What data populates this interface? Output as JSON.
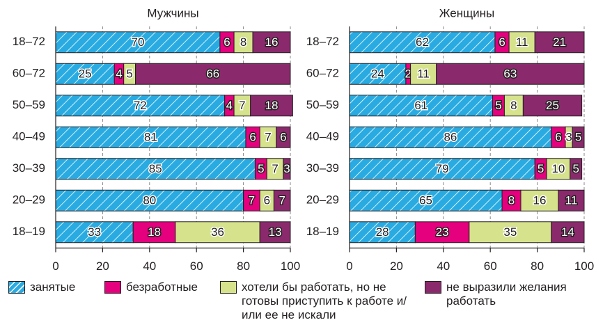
{
  "chart_data": [
    {
      "type": "stacked-bar",
      "title": "Мужчины",
      "categories": [
        "18–72",
        "60–72",
        "50–59",
        "40–49",
        "30–39",
        "20–29",
        "18–19"
      ],
      "series": [
        {
          "values": [
            70,
            25,
            72,
            81,
            85,
            80,
            33
          ]
        },
        {
          "values": [
            6,
            4,
            4,
            6,
            5,
            7,
            18
          ]
        },
        {
          "values": [
            8,
            5,
            7,
            7,
            7,
            6,
            36
          ]
        },
        {
          "values": [
            16,
            66,
            18,
            6,
            3,
            7,
            13
          ]
        }
      ],
      "xlim": [
        0,
        100
      ],
      "xticks": [
        0,
        20,
        40,
        60,
        80,
        100
      ],
      "grid": true
    },
    {
      "type": "stacked-bar",
      "title": "Женщины",
      "categories": [
        "18–72",
        "60–72",
        "50–59",
        "40–49",
        "30–39",
        "20–29",
        "18–19"
      ],
      "series": [
        {
          "values": [
            62,
            24,
            61,
            86,
            79,
            65,
            28
          ]
        },
        {
          "values": [
            6,
            2,
            5,
            6,
            5,
            8,
            23
          ]
        },
        {
          "values": [
            11,
            11,
            8,
            3,
            10,
            16,
            35
          ]
        },
        {
          "values": [
            21,
            63,
            25,
            5,
            5,
            11,
            14
          ]
        }
      ],
      "xlim": [
        0,
        100
      ],
      "xticks": [
        0,
        20,
        40,
        60,
        80,
        100
      ],
      "grid": true
    }
  ],
  "legend": [
    {
      "name": "занятые",
      "color": "#29abe2",
      "hatch": true
    },
    {
      "name": "безработные",
      "color": "#e5007e"
    },
    {
      "name": "хотели бы работать, но не готовы приступить к работе и/или ее не искали",
      "color": "#d6e38c"
    },
    {
      "name": "не выразили желания работать",
      "color": "#8a2a6c"
    }
  ]
}
